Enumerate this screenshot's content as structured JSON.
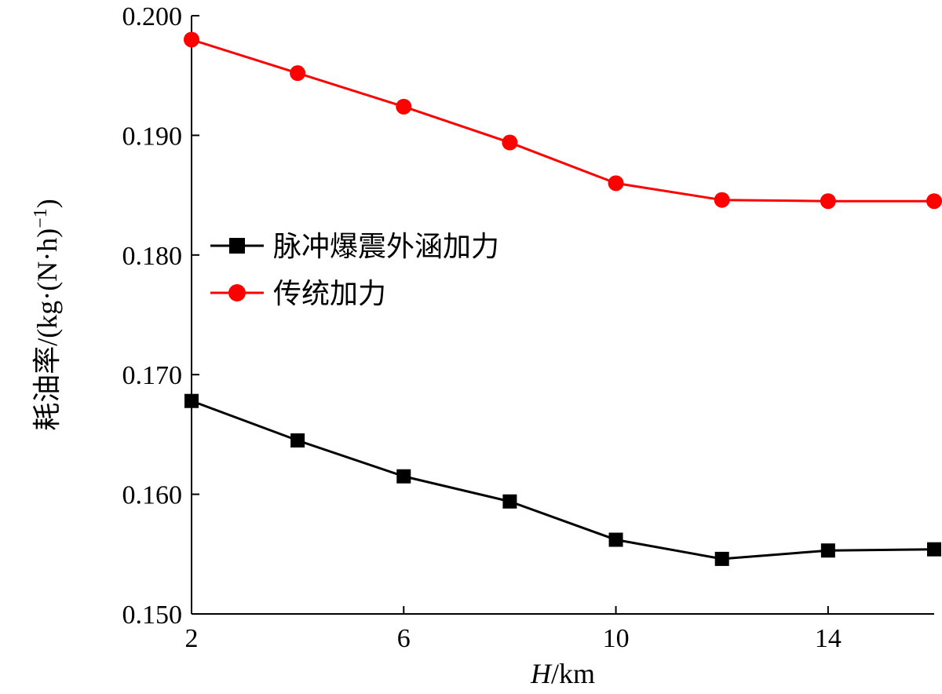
{
  "chart_data": {
    "type": "line",
    "xlabel": {
      "var": "H",
      "unit": "/km"
    },
    "ylabel": {
      "text": "耗油率/(kg·(N·h)",
      "sup": "−1",
      "close": ")"
    },
    "x": [
      2,
      4,
      6,
      8,
      10,
      12,
      14,
      16
    ],
    "xlim": [
      2,
      16
    ],
    "ylim": [
      0.15,
      0.2
    ],
    "xticks": [
      2,
      6,
      10,
      14
    ],
    "xtick_labels": [
      "2",
      "6",
      "10",
      "14"
    ],
    "yticks": [
      0.15,
      0.16,
      0.17,
      0.18,
      0.19,
      0.2
    ],
    "ytick_labels": [
      "0.150",
      "0.160",
      "0.170",
      "0.180",
      "0.190",
      "0.200"
    ],
    "grid": false,
    "legend_position": "middle-left",
    "series": [
      {
        "name": "脉冲爆震外涵加力",
        "marker": "square",
        "color": "#000000",
        "values": [
          0.1678,
          0.1645,
          0.1615,
          0.1594,
          0.1562,
          0.1546,
          0.1553,
          0.1554
        ]
      },
      {
        "name": "传统加力",
        "marker": "circle",
        "color": "#ff0000",
        "values": [
          0.198,
          0.1952,
          0.1924,
          0.1894,
          0.186,
          0.1846,
          0.1845,
          0.1845
        ]
      }
    ]
  }
}
